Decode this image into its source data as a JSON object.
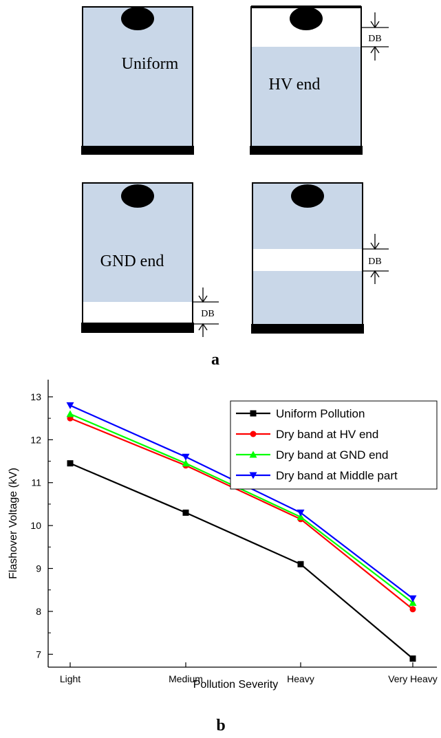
{
  "panel_a": {
    "caption": "a",
    "cells": [
      {
        "label": "Uniform",
        "dry_band": "none"
      },
      {
        "label": "HV end",
        "dry_band": "top",
        "band_label": "DB"
      },
      {
        "label": "GND end",
        "dry_band": "bottom",
        "band_label": "DB"
      },
      {
        "label": "",
        "dry_band": "middle",
        "band_label": "DB"
      }
    ],
    "colors": {
      "pollution": "#c9d7e8",
      "electrode": "#000000",
      "dry": "#ffffff"
    }
  },
  "panel_b": {
    "caption": "b"
  },
  "chart_data": {
    "type": "line",
    "categories": [
      "Light",
      "Medium",
      "Heavy",
      "Very Heavy"
    ],
    "xlabel": "Pollution Severity",
    "ylabel": "Flashover Voltage (kV)",
    "ylim": [
      6.7,
      13.4
    ],
    "yticks": [
      7,
      8,
      9,
      10,
      11,
      12,
      13
    ],
    "legend_position": "top-right",
    "grid": false,
    "series": [
      {
        "name": "Uniform Pollution",
        "values": [
          11.45,
          10.3,
          9.1,
          6.9
        ],
        "color": "#000000",
        "marker": "square"
      },
      {
        "name": "Dry band at HV end",
        "values": [
          12.5,
          11.4,
          10.15,
          8.05
        ],
        "color": "#ff0000",
        "marker": "circle"
      },
      {
        "name": "Dry band at GND end",
        "values": [
          12.6,
          11.45,
          10.2,
          8.2
        ],
        "color": "#00ff00",
        "marker": "triangle-up"
      },
      {
        "name": "Dry band at Middle part",
        "values": [
          12.8,
          11.6,
          10.3,
          8.3
        ],
        "color": "#0000ff",
        "marker": "triangle-down"
      }
    ]
  }
}
